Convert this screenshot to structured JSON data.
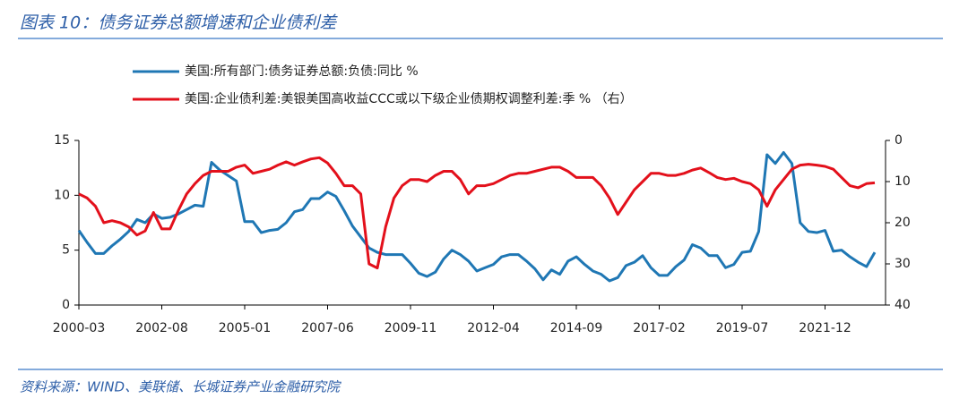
{
  "chart_data": {
    "type": "line",
    "title": "图表 10：债务证券总额增速和企业债利差",
    "source": "资料来源：WIND、美联储、长城证券产业金融研究院",
    "categories": [
      "2000-03",
      null,
      null,
      null,
      null,
      null,
      null,
      null,
      null,
      null,
      "2002-08",
      null,
      null,
      null,
      null,
      null,
      null,
      null,
      null,
      null,
      "2005-01",
      null,
      null,
      null,
      null,
      null,
      null,
      null,
      null,
      null,
      "2007-06",
      null,
      null,
      null,
      null,
      null,
      null,
      null,
      null,
      null,
      "2009-11",
      null,
      null,
      null,
      null,
      null,
      null,
      null,
      null,
      null,
      "2012-04",
      null,
      null,
      null,
      null,
      null,
      null,
      null,
      null,
      null,
      "2014-09",
      null,
      null,
      null,
      null,
      null,
      null,
      null,
      null,
      null,
      "2017-02",
      null,
      null,
      null,
      null,
      null,
      null,
      null,
      null,
      null,
      "2019-07",
      null,
      null,
      null,
      null,
      null,
      null,
      null,
      null,
      null,
      "2021-12",
      null,
      null,
      null,
      null,
      null,
      null
    ],
    "series": [
      {
        "name": "美国:所有部门:债务证券总额:负债:同比 %",
        "color": "#1f77b4",
        "values": [
          6.8,
          5.7,
          4.7,
          4.7,
          5.4,
          6.0,
          6.7,
          7.8,
          7.5,
          8.3,
          7.9,
          8.0,
          8.3,
          8.7,
          9.1,
          9.0,
          13.0,
          12.3,
          11.8,
          11.3,
          7.6,
          7.6,
          6.6,
          6.8,
          6.9,
          7.5,
          8.5,
          8.7,
          9.7,
          9.7,
          10.3,
          9.9,
          8.6,
          7.2,
          6.2,
          5.2,
          4.8,
          4.6,
          4.6,
          4.6,
          3.8,
          2.9,
          2.6,
          3.0,
          4.2,
          5.0,
          4.6,
          4.0,
          3.1,
          3.4,
          3.7,
          4.4,
          4.6,
          4.6,
          4.0,
          3.3,
          2.3,
          3.2,
          2.8,
          4.0,
          4.4,
          3.7,
          3.1,
          2.8,
          2.2,
          2.5,
          3.6,
          3.9,
          4.5,
          3.4,
          2.7,
          2.7,
          3.5,
          4.1,
          5.5,
          5.2,
          4.5,
          4.5,
          3.4,
          3.7,
          4.8,
          4.9,
          6.7,
          13.7,
          12.9,
          13.9,
          12.9,
          7.5,
          6.7,
          6.6,
          6.8,
          4.9,
          5.0,
          4.4,
          3.9,
          3.5,
          4.8
        ]
      },
      {
        "name": "美国:企业债利差:美银美国高收益CCC或以下级企业债期权调整利差:季 % （右）",
        "color": "#e3101b",
        "axis": "y2",
        "values": [
          13,
          14,
          16,
          20,
          19.5,
          20,
          21,
          23,
          22,
          17.5,
          21.5,
          21.5,
          17,
          13,
          10.5,
          8.5,
          7.5,
          7.5,
          7.5,
          6.5,
          6,
          8,
          7.5,
          7,
          6,
          5.2,
          6,
          5.2,
          4.5,
          4.2,
          5.5,
          8,
          11,
          11,
          13,
          30,
          31,
          21,
          14,
          11,
          9.5,
          9.5,
          10,
          8.5,
          7.5,
          7.5,
          9.5,
          13,
          11,
          11,
          10.5,
          9.5,
          8.5,
          8,
          8,
          7.5,
          7,
          6.5,
          6.5,
          7.5,
          9,
          9,
          9,
          11,
          14,
          18,
          15,
          12,
          10,
          8,
          8,
          8.5,
          8.5,
          8,
          7.2,
          6.7,
          7.8,
          9,
          9.5,
          9.2,
          10,
          10.5,
          12,
          16,
          12,
          9.5,
          7,
          6,
          5.8,
          6,
          6.3,
          7,
          9,
          11,
          11.5,
          10.5,
          10.3
        ]
      }
    ],
    "ylim": [
      0,
      15
    ],
    "yticks": [
      0,
      5,
      10,
      15
    ],
    "y2lim": [
      0,
      40
    ],
    "y2ticks": [
      0,
      10,
      20,
      30,
      40
    ],
    "y2_inverted": true,
    "grid": false
  }
}
